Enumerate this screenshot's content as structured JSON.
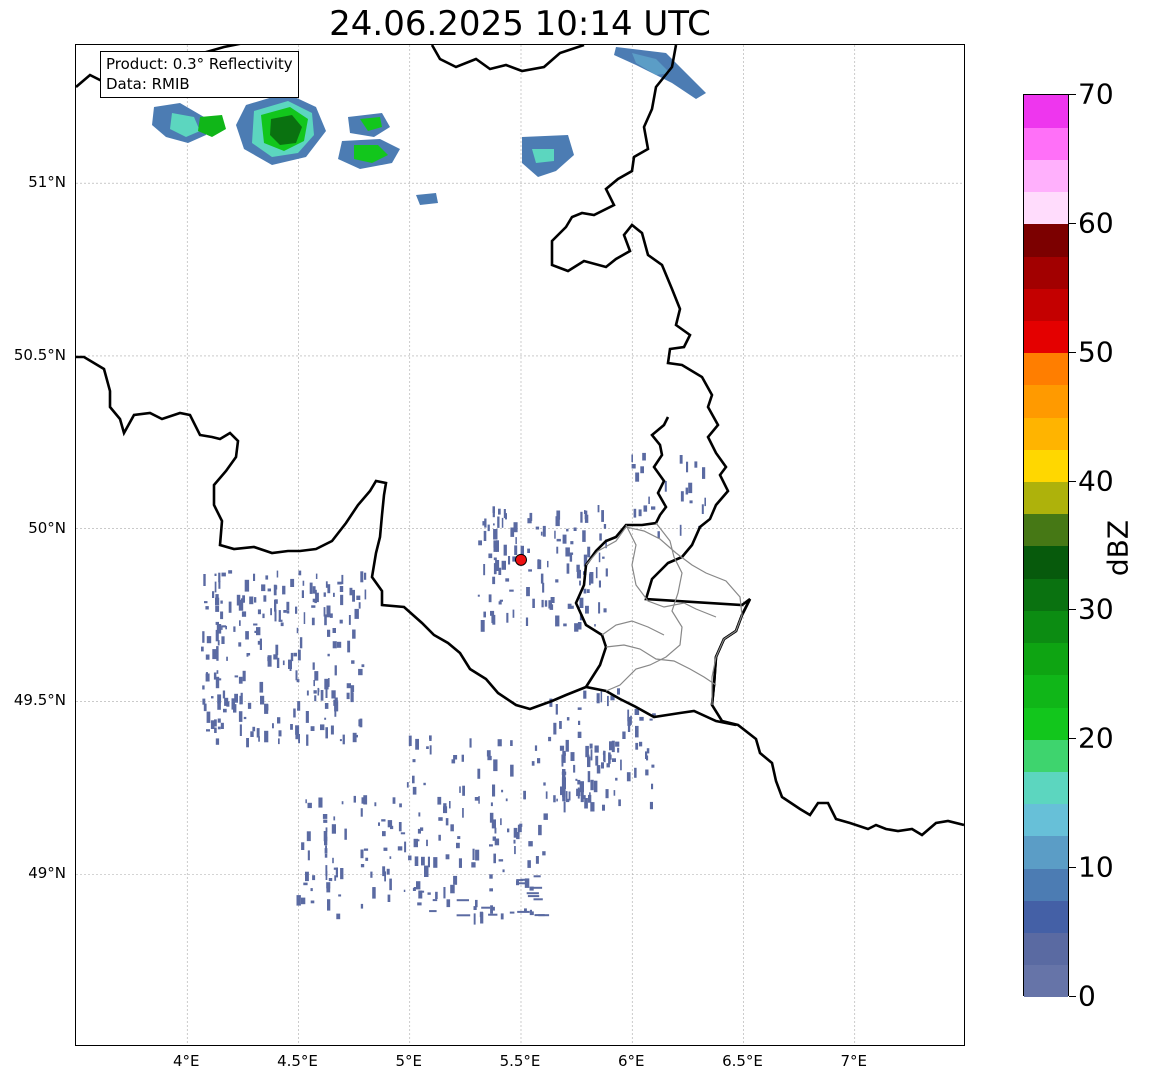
{
  "title": "24.06.2025 10:14 UTC",
  "info": {
    "product": "Product: 0.3° Reflectivity",
    "source": "Data: RMIB"
  },
  "map": {
    "lon_range": [
      3.5,
      7.5
    ],
    "lat_range": [
      48.5,
      51.4
    ],
    "x_ticks": [
      4.0,
      4.5,
      5.0,
      5.5,
      6.0,
      6.5,
      7.0
    ],
    "x_tick_labels": [
      "4°E",
      "4.5°E",
      "5°E",
      "5.5°E",
      "6°E",
      "6.5°E",
      "7°E"
    ],
    "y_ticks": [
      49.0,
      49.5,
      50.0,
      50.5,
      51.0
    ],
    "y_tick_labels": [
      "49°N",
      "49.5°N",
      "50°N",
      "50.5°N",
      "51°N"
    ],
    "radar_site": {
      "lon": 5.5,
      "lat": 49.91,
      "color": "#ee1111"
    },
    "gridlines": "dashed grey"
  },
  "colorbar": {
    "label": "dBZ",
    "min": 0,
    "max": 70,
    "tick_values": [
      0,
      10,
      20,
      30,
      40,
      50,
      60,
      70
    ],
    "tick_labels": [
      "0",
      "10",
      "20",
      "30",
      "40",
      "50",
      "60",
      "70"
    ],
    "colors": [
      "#6674a8",
      "#5a6aa2",
      "#4460a6",
      "#4c7cb3",
      "#5b9dc6",
      "#67c0d8",
      "#5cd6bf",
      "#3ed46e",
      "#12c61c",
      "#10b618",
      "#0ea412",
      "#0c8c12",
      "#0a7210",
      "#075a0c",
      "#467815",
      "#aeb20b",
      "#ffd700",
      "#ffb400",
      "#ff9a00",
      "#ff7e00",
      "#e40000",
      "#c40000",
      "#a20000",
      "#7c0000",
      "#ffdcfc",
      "#ffb0fc",
      "#ff70f8",
      "#ee36ee"
    ]
  }
}
